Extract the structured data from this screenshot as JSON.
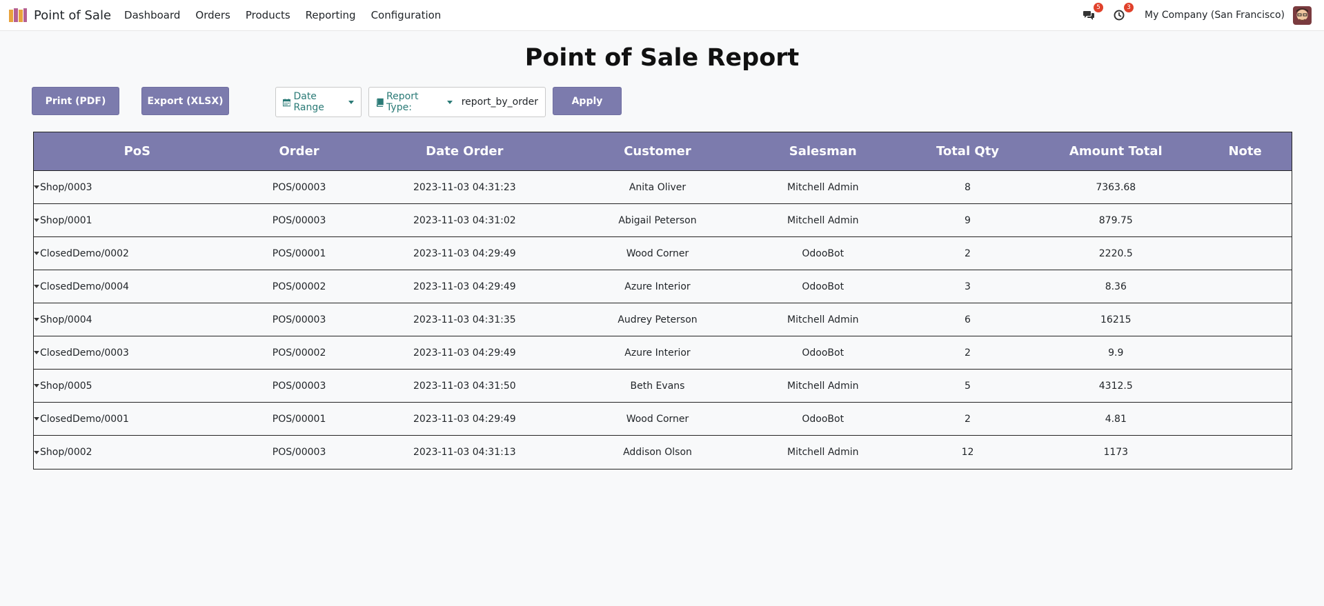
{
  "app": {
    "name": "Point of Sale",
    "menu": [
      "Dashboard",
      "Orders",
      "Products",
      "Reporting",
      "Configuration"
    ],
    "messages_count": "5",
    "activities_count": "3",
    "company": "My Company (San Francisco)"
  },
  "page": {
    "title": "Point of Sale Report"
  },
  "toolbar": {
    "print_label": "Print (PDF)",
    "export_label": "Export (XLSX)",
    "date_range_label": "Date Range",
    "report_type_label": "Report Type:",
    "report_type_value": "report_by_order",
    "apply_label": "Apply"
  },
  "table": {
    "headers": [
      "PoS",
      "Order",
      "Date Order",
      "Customer",
      "Salesman",
      "Total Qty",
      "Amount Total",
      "Note"
    ],
    "rows": [
      [
        "Shop/0003",
        "POS/00003",
        "2023-11-03 04:31:23",
        "Anita Oliver",
        "Mitchell Admin",
        "8",
        "7363.68",
        ""
      ],
      [
        "Shop/0001",
        "POS/00003",
        "2023-11-03 04:31:02",
        "Abigail Peterson",
        "Mitchell Admin",
        "9",
        "879.75",
        ""
      ],
      [
        "ClosedDemo/0002",
        "POS/00001",
        "2023-11-03 04:29:49",
        "Wood Corner",
        "OdooBot",
        "2",
        "2220.5",
        ""
      ],
      [
        "ClosedDemo/0004",
        "POS/00002",
        "2023-11-03 04:29:49",
        "Azure Interior",
        "OdooBot",
        "3",
        "8.36",
        ""
      ],
      [
        "Shop/0004",
        "POS/00003",
        "2023-11-03 04:31:35",
        "Audrey Peterson",
        "Mitchell Admin",
        "6",
        "16215",
        ""
      ],
      [
        "ClosedDemo/0003",
        "POS/00002",
        "2023-11-03 04:29:49",
        "Azure Interior",
        "OdooBot",
        "2",
        "9.9",
        ""
      ],
      [
        "Shop/0005",
        "POS/00003",
        "2023-11-03 04:31:50",
        "Beth Evans",
        "Mitchell Admin",
        "5",
        "4312.5",
        ""
      ],
      [
        "ClosedDemo/0001",
        "POS/00001",
        "2023-11-03 04:29:49",
        "Wood Corner",
        "OdooBot",
        "2",
        "4.81",
        ""
      ],
      [
        "Shop/0002",
        "POS/00003",
        "2023-11-03 04:31:13",
        "Addison Olson",
        "Mitchell Admin",
        "12",
        "1173",
        ""
      ]
    ]
  },
  "colors": {
    "accent": "#7c7bad",
    "badge": "#e0412b",
    "link": "#2a7a76"
  }
}
